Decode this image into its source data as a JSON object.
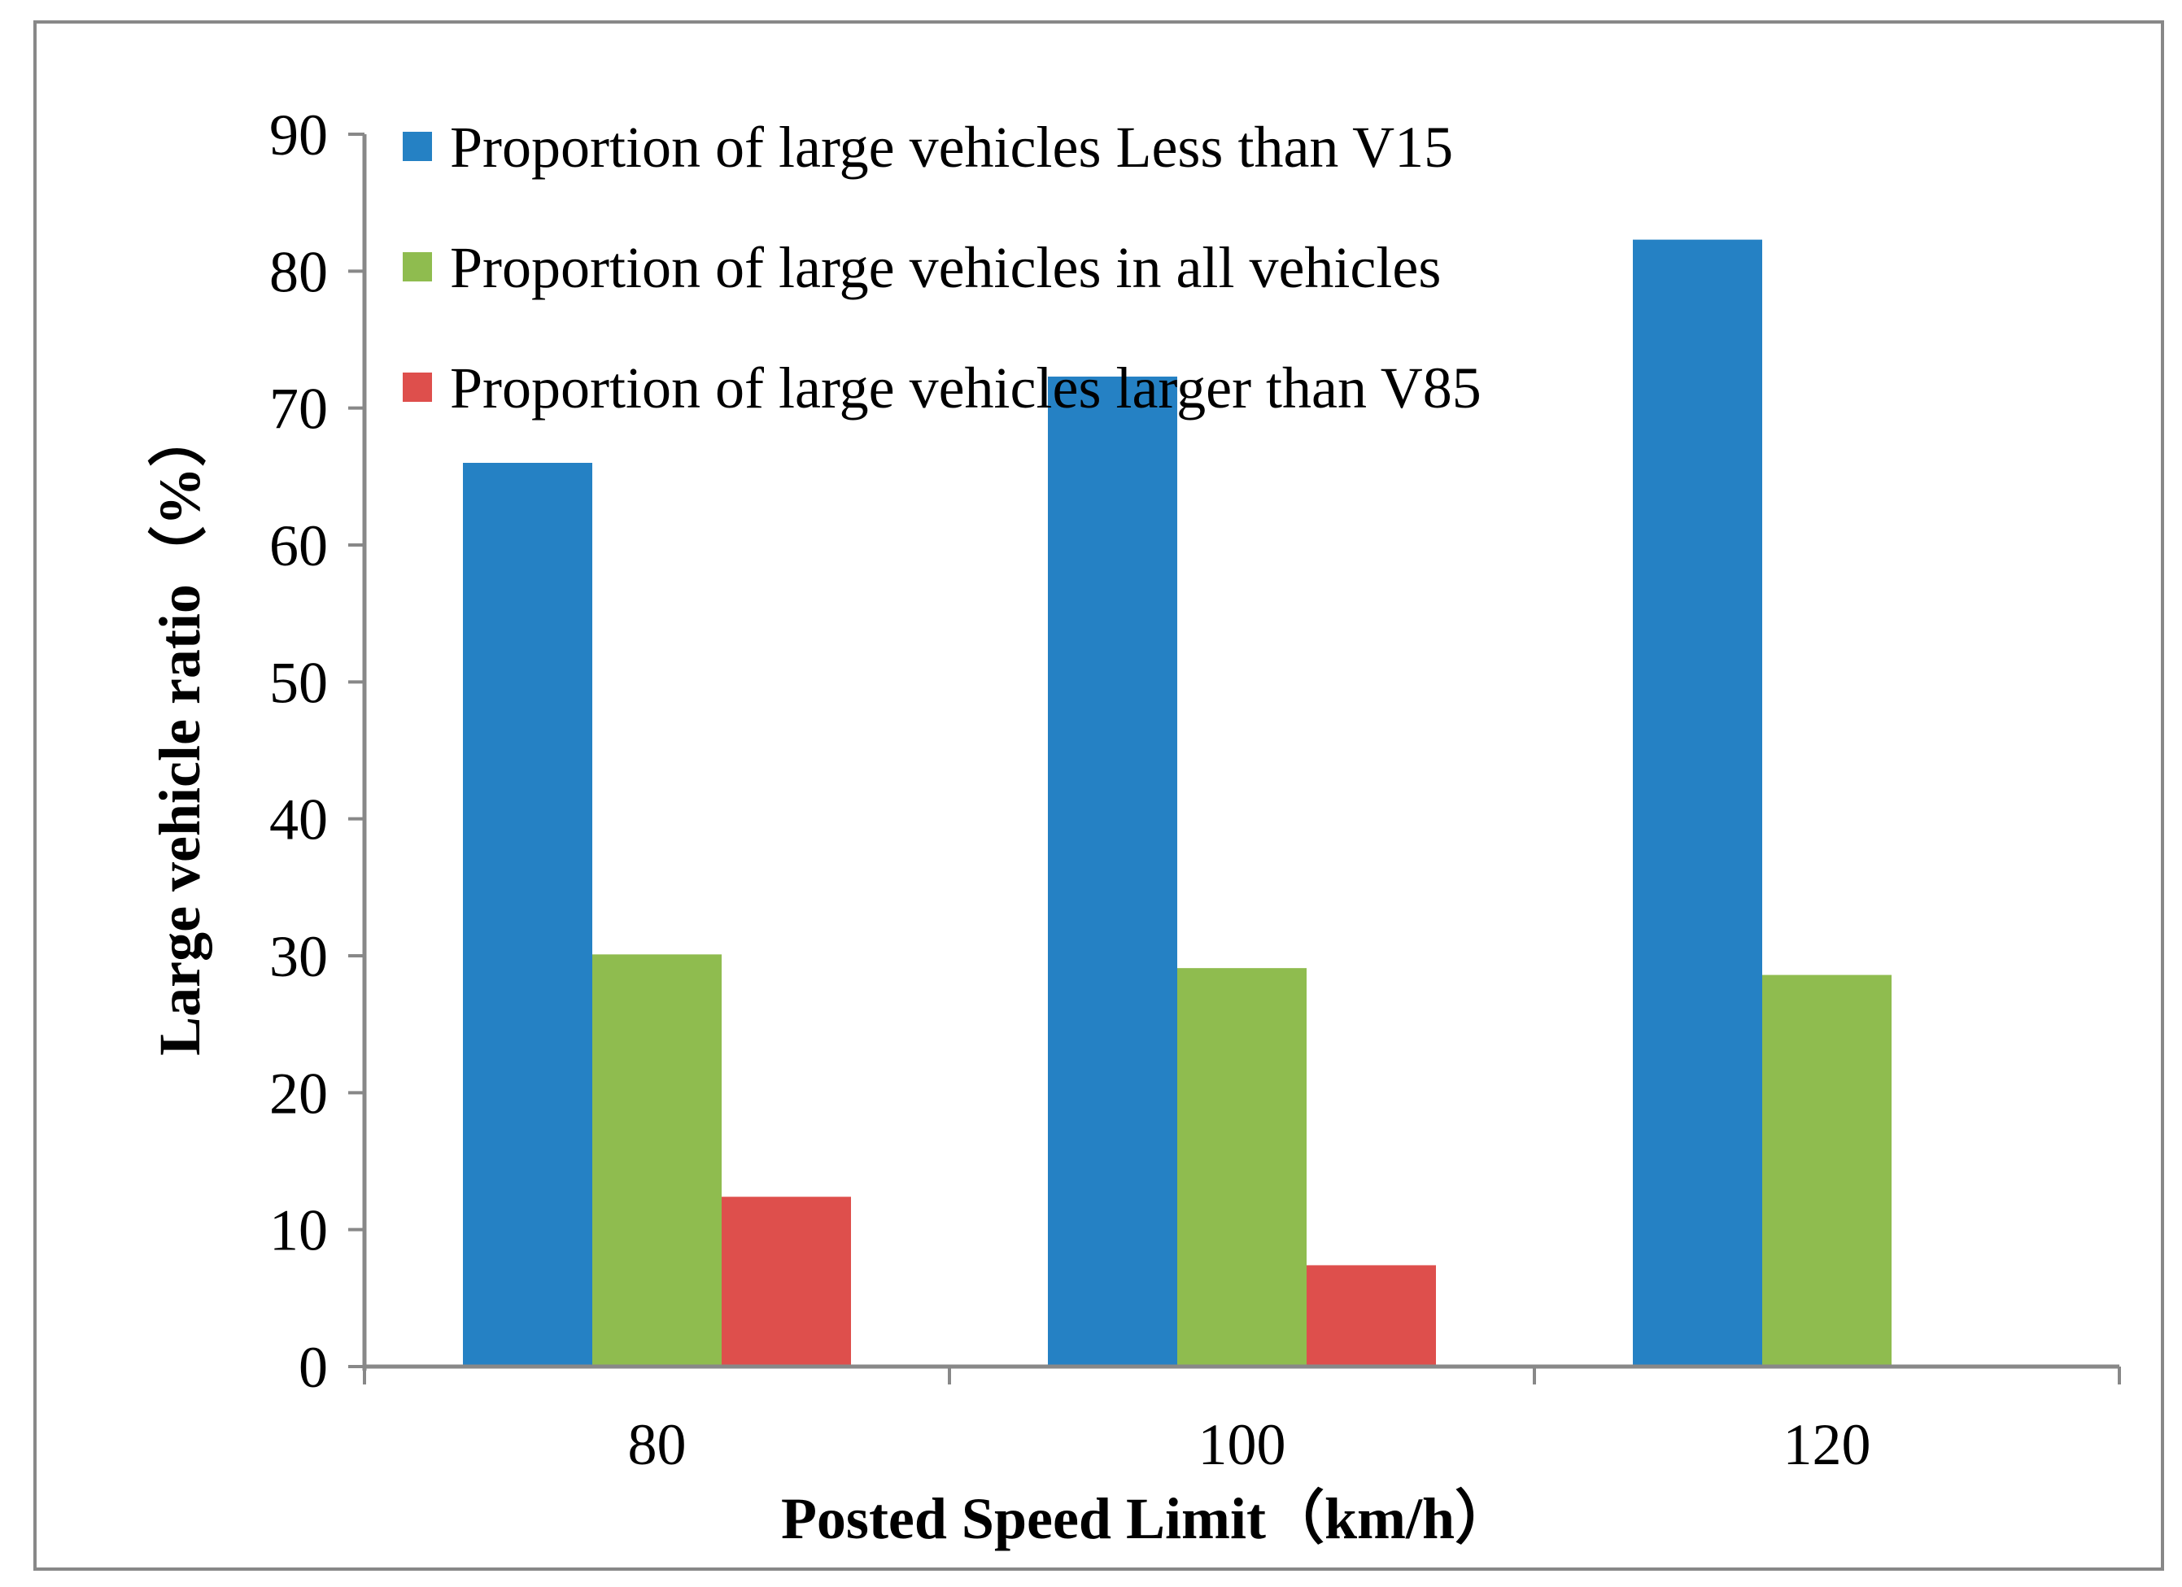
{
  "chart_data": {
    "type": "bar",
    "categories": [
      "80",
      "100",
      "120"
    ],
    "series": [
      {
        "name": "Proportion of large vehicles Less than V15",
        "values": [
          66,
          72.3,
          82.3
        ],
        "color": "#2581c4"
      },
      {
        "name": "Proportion of large vehicles in all vehicles",
        "values": [
          30.1,
          29.1,
          28.6
        ],
        "color": "#8fbc4f"
      },
      {
        "name": "Proportion of large vehicles larger than V85",
        "values": [
          12.4,
          7.4,
          0
        ],
        "color": "#de4f4c"
      }
    ],
    "title": "",
    "xlabel": "Posted  Speed Limit（km/h）",
    "ylabel": "Large vehicle ratio（%）",
    "ylim": [
      0,
      90
    ],
    "yticks": [
      "0",
      "10",
      "20",
      "30",
      "40",
      "50",
      "60",
      "70",
      "80",
      "90"
    ],
    "grid": false,
    "legend": "top-left"
  }
}
